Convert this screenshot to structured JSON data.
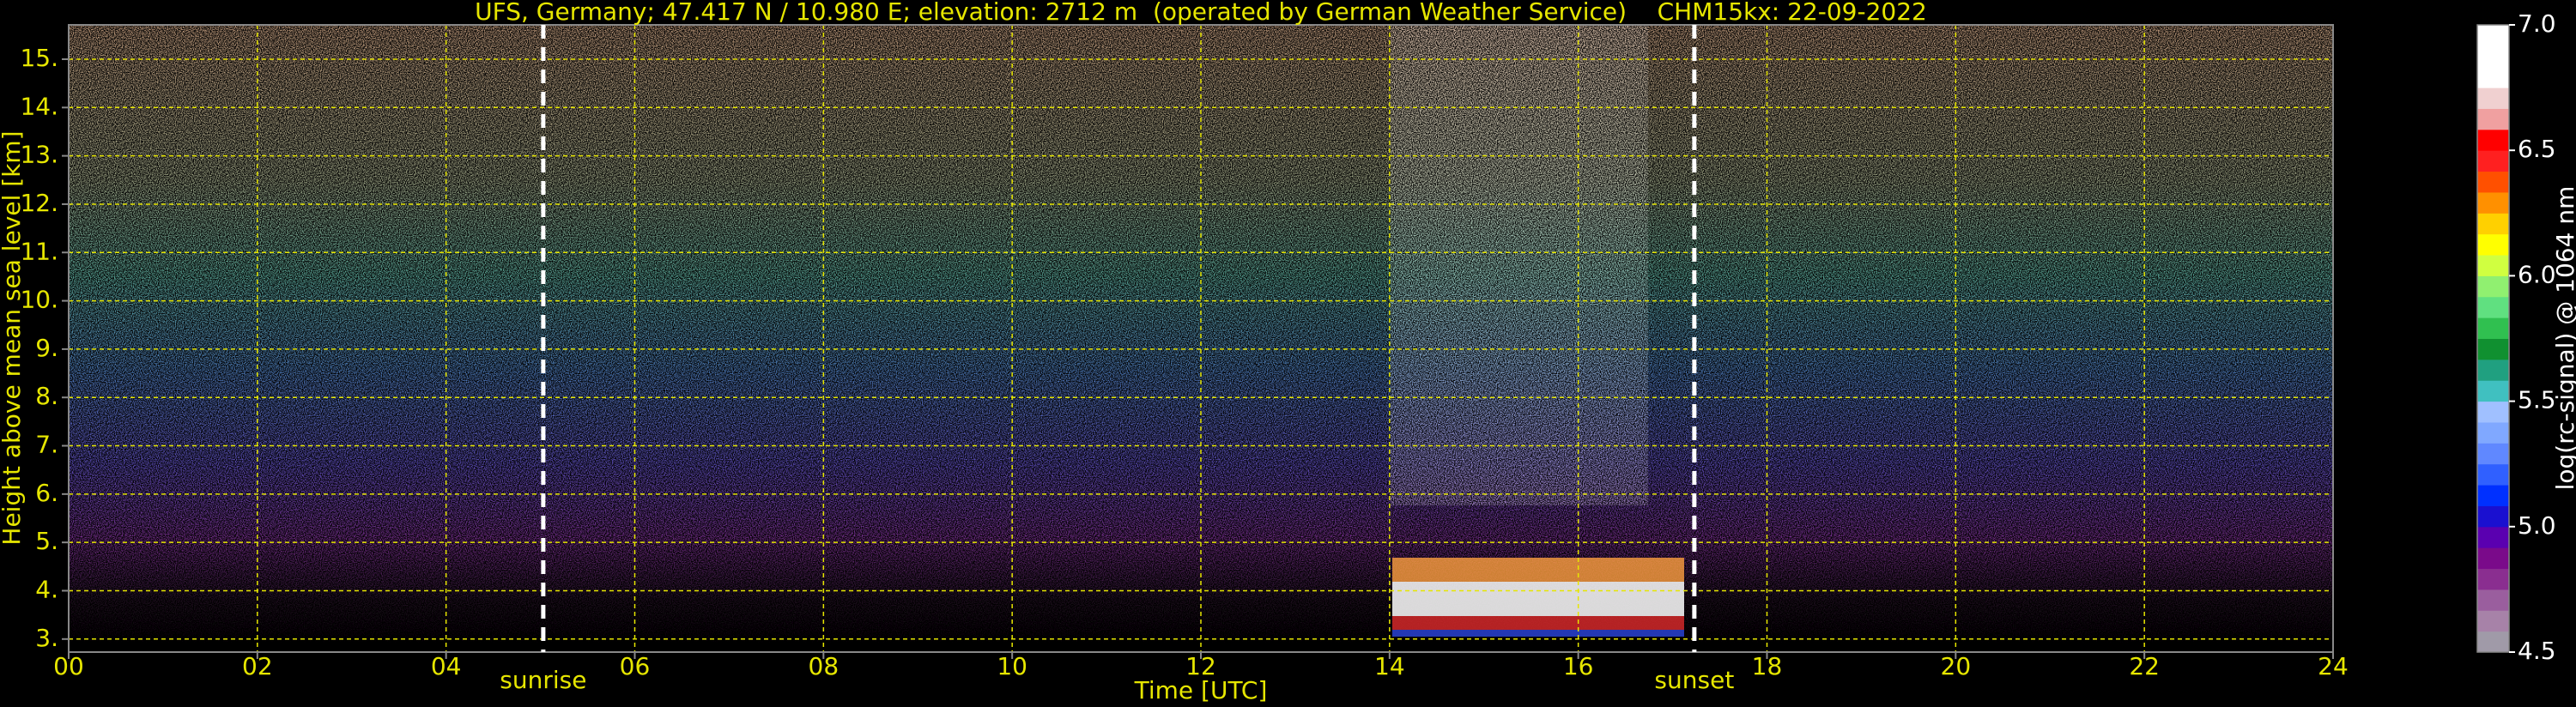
{
  "chart_data": {
    "type": "ceilometer",
    "title": "UFS, Germany; 47.417 N / 10.980 E; elevation: 2712 m  (operated by German Weather Service)    CHM15kx: 22-09-2022",
    "x_label": "Time [UTC]",
    "y_label": "Height above mean sea level [km]",
    "xlim": [
      0,
      24
    ],
    "xticks": [
      {
        "value": 0,
        "label": "00"
      },
      {
        "value": 2,
        "label": "02"
      },
      {
        "value": 4,
        "label": "04"
      },
      {
        "value": 6,
        "label": "06"
      },
      {
        "value": 8,
        "label": "08"
      },
      10,
      12,
      14,
      16,
      18,
      20,
      22,
      24
    ],
    "ylim": [
      2.73,
      15.71
    ],
    "yticks": [
      {
        "value": 3,
        "label": "3."
      },
      {
        "value": 4,
        "label": "4."
      },
      {
        "value": 5,
        "label": "5."
      },
      {
        "value": 6,
        "label": "6."
      },
      {
        "value": 7,
        "label": "7."
      },
      {
        "value": 8,
        "label": "8."
      },
      {
        "value": 9,
        "label": "9."
      },
      {
        "value": 10,
        "label": "10."
      },
      {
        "value": 11,
        "label": "11."
      },
      {
        "value": 12,
        "label": "12."
      },
      {
        "value": 13,
        "label": "13."
      },
      {
        "value": 14,
        "label": "14."
      },
      {
        "value": 15,
        "label": "15."
      }
    ],
    "grid": true,
    "grid_color": "#e6e600",
    "axis_text_color": "#e6e600",
    "annotations": [
      {
        "text": "sunrise",
        "x": 5.03
      },
      {
        "text": "sunset",
        "x": 17.23
      }
    ],
    "colorbar": {
      "label": "log(rc-signal) @ 1064 nm",
      "lim": [
        4.5,
        7.0
      ],
      "ticks": [
        4.5,
        {
          "value": 5.0,
          "label": "5.0"
        },
        5.5,
        {
          "value": 6.0,
          "label": "6.0"
        },
        6.5,
        {
          "value": 7.0,
          "label": "7.0"
        }
      ],
      "colors": [
        "#a09aa8",
        "#a782a8",
        "#9a5e9e",
        "#8a2e90",
        "#7a0a8a",
        "#5a00b0",
        "#1a10d0",
        "#0030ff",
        "#3060ff",
        "#6088ff",
        "#80a8ff",
        "#a0c0ff",
        "#40c0c0",
        "#20a080",
        "#109030",
        "#30c050",
        "#60e080",
        "#90f070",
        "#d0ff40",
        "#ffff00",
        "#ffd000",
        "#ff9000",
        "#ff5000",
        "#ff2020",
        "#ff0000",
        "#f0a0a0",
        "#f0d0d0",
        "#ffffff",
        "#ffffff",
        "#ffffff"
      ]
    }
  }
}
